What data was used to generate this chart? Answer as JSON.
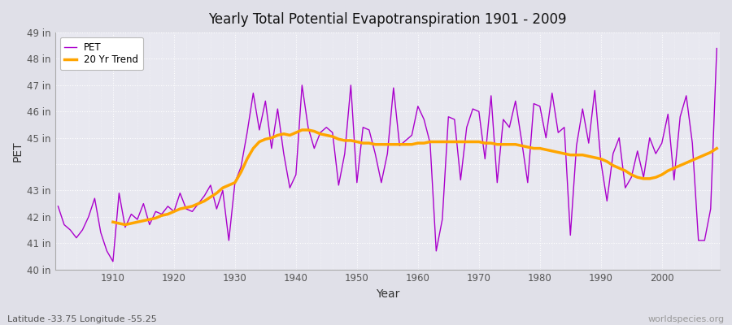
{
  "title": "Yearly Total Potential Evapotranspiration 1901 - 2009",
  "xlabel": "Year",
  "ylabel": "PET",
  "subtitle": "Latitude -33.75 Longitude -55.25",
  "watermark": "worldspecies.org",
  "pet_color": "#aa00cc",
  "trend_color": "#FFA500",
  "bg_color": "#e0e0e8",
  "plot_bg_color": "#e8e8f0",
  "ylim": [
    40,
    49
  ],
  "years": [
    1901,
    1902,
    1903,
    1904,
    1905,
    1906,
    1907,
    1908,
    1909,
    1910,
    1911,
    1912,
    1913,
    1914,
    1915,
    1916,
    1917,
    1918,
    1919,
    1920,
    1921,
    1922,
    1923,
    1924,
    1925,
    1926,
    1927,
    1928,
    1929,
    1930,
    1931,
    1932,
    1933,
    1934,
    1935,
    1936,
    1937,
    1938,
    1939,
    1940,
    1941,
    1942,
    1943,
    1944,
    1945,
    1946,
    1947,
    1948,
    1949,
    1950,
    1951,
    1952,
    1953,
    1954,
    1955,
    1956,
    1957,
    1958,
    1959,
    1960,
    1961,
    1962,
    1963,
    1964,
    1965,
    1966,
    1967,
    1968,
    1969,
    1970,
    1971,
    1972,
    1973,
    1974,
    1975,
    1976,
    1977,
    1978,
    1979,
    1980,
    1981,
    1982,
    1983,
    1984,
    1985,
    1986,
    1987,
    1988,
    1989,
    1990,
    1991,
    1992,
    1993,
    1994,
    1995,
    1996,
    1997,
    1998,
    1999,
    2000,
    2001,
    2002,
    2003,
    2004,
    2005,
    2006,
    2007,
    2008,
    2009
  ],
  "pet_values": [
    42.4,
    41.7,
    41.5,
    41.2,
    41.5,
    42.0,
    42.7,
    41.4,
    40.7,
    40.3,
    42.9,
    41.6,
    42.1,
    41.9,
    42.5,
    41.7,
    42.2,
    42.1,
    42.4,
    42.2,
    42.9,
    42.3,
    42.2,
    42.5,
    42.8,
    43.2,
    42.3,
    43.0,
    41.1,
    43.3,
    43.9,
    45.2,
    46.7,
    45.3,
    46.4,
    44.6,
    46.1,
    44.4,
    43.1,
    43.6,
    47.0,
    45.4,
    44.6,
    45.2,
    45.4,
    45.2,
    43.2,
    44.4,
    47.0,
    43.3,
    45.4,
    45.3,
    44.4,
    43.3,
    44.4,
    46.9,
    44.7,
    44.9,
    45.1,
    46.2,
    45.7,
    44.8,
    40.7,
    41.9,
    45.8,
    45.7,
    43.4,
    45.4,
    46.1,
    46.0,
    44.2,
    46.6,
    43.3,
    45.7,
    45.4,
    46.4,
    44.9,
    43.3,
    46.3,
    46.2,
    45.0,
    46.7,
    45.2,
    45.4,
    41.3,
    44.7,
    46.1,
    44.8,
    46.8,
    44.1,
    42.6,
    44.4,
    45.0,
    43.1,
    43.5,
    44.5,
    43.5,
    45.0,
    44.4,
    44.8,
    45.9,
    43.4,
    45.8,
    46.6,
    44.8,
    41.1,
    41.1,
    42.3,
    48.4
  ],
  "trend_values": [
    null,
    null,
    null,
    null,
    null,
    null,
    null,
    null,
    null,
    41.8,
    41.75,
    41.7,
    41.75,
    41.8,
    41.85,
    41.9,
    41.95,
    42.05,
    42.1,
    42.2,
    42.3,
    42.35,
    42.4,
    42.5,
    42.6,
    42.75,
    42.9,
    43.1,
    43.2,
    43.3,
    43.7,
    44.2,
    44.6,
    44.85,
    44.95,
    45.0,
    45.1,
    45.15,
    45.1,
    45.2,
    45.3,
    45.3,
    45.25,
    45.15,
    45.1,
    45.05,
    44.95,
    44.9,
    44.9,
    44.85,
    44.8,
    44.8,
    44.75,
    44.75,
    44.75,
    44.75,
    44.75,
    44.75,
    44.75,
    44.8,
    44.8,
    44.85,
    44.85,
    44.85,
    44.85,
    44.85,
    44.85,
    44.85,
    44.85,
    44.85,
    44.8,
    44.8,
    44.75,
    44.75,
    44.75,
    44.75,
    44.7,
    44.65,
    44.6,
    44.6,
    44.55,
    44.5,
    44.45,
    44.4,
    44.35,
    44.35,
    44.35,
    44.3,
    44.25,
    44.2,
    44.1,
    43.95,
    43.85,
    43.75,
    43.6,
    43.5,
    43.45,
    43.45,
    43.5,
    43.6,
    43.75,
    43.85,
    43.95,
    44.05,
    44.15,
    44.25,
    44.35,
    44.45,
    44.6
  ]
}
